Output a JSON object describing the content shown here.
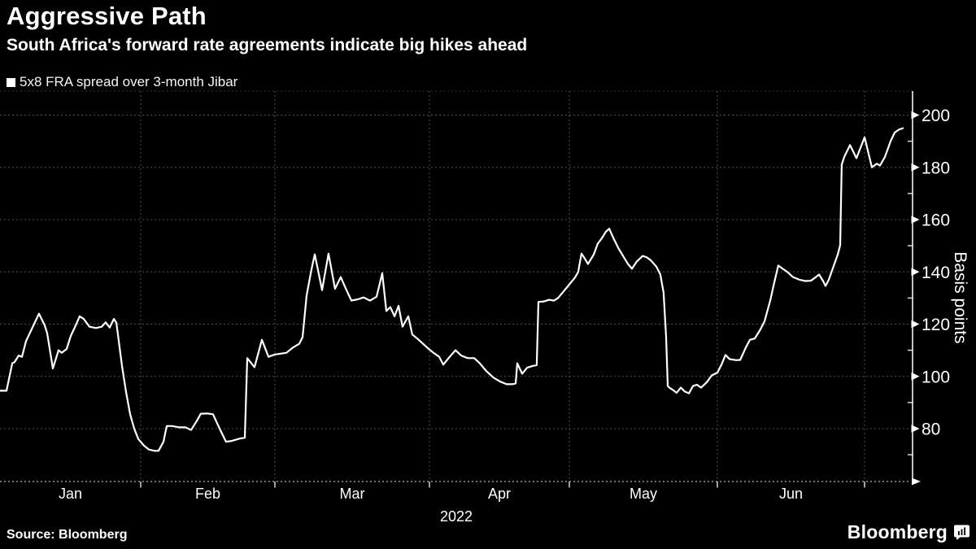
{
  "header": {
    "title": "Aggressive Path",
    "subtitle": "South Africa's forward rate agreements indicate big hikes ahead"
  },
  "legend": {
    "marker_color": "#ffffff",
    "label": "5x8 FRA spread over 3-month Jibar"
  },
  "footer": {
    "source": "Source: Bloomberg",
    "logo_text": "Bloomberg"
  },
  "chart_data": {
    "type": "line",
    "title": "Aggressive Path",
    "subtitle": "South Africa's forward rate agreements indicate big hikes ahead",
    "ylabel": "Basis points",
    "xlabel": "",
    "x_axis_year_label": "2022",
    "xticklabels": [
      "Jan",
      "Feb",
      "Mar",
      "Apr",
      "May",
      "Jun"
    ],
    "yticks": [
      80,
      100,
      120,
      140,
      160,
      180,
      200
    ],
    "minor_yticks": [
      70,
      90,
      110,
      130,
      150,
      170,
      190
    ],
    "ylim": [
      60,
      207
    ],
    "grid": true,
    "legend_position": "top-left",
    "background": "#000000",
    "grid_color": "#4f4f4f",
    "series": [
      {
        "name": "5x8 FRA spread over 3-month Jibar",
        "color": "#ffffff",
        "x_unit": "months since 1 Jan 2022 (fractional; 0=Jan, 5=Jun)",
        "y_unit": "basis points",
        "points": [
          [
            0,
            94.5
          ],
          [
            0.046,
            94.5
          ],
          [
            0.087,
            105
          ],
          [
            0.104,
            105.5
          ],
          [
            0.133,
            108
          ],
          [
            0.156,
            107.5
          ],
          [
            0.185,
            113.5
          ],
          [
            0.22,
            117.5
          ],
          [
            0.277,
            124
          ],
          [
            0.318,
            119.5
          ],
          [
            0.335,
            116.5
          ],
          [
            0.376,
            103
          ],
          [
            0.416,
            110
          ],
          [
            0.439,
            109
          ],
          [
            0.474,
            110.5
          ],
          [
            0.503,
            115.5
          ],
          [
            0.538,
            119.5
          ],
          [
            0.566,
            123
          ],
          [
            0.595,
            122
          ],
          [
            0.636,
            119
          ],
          [
            0.682,
            118.5
          ],
          [
            0.723,
            119
          ],
          [
            0.751,
            120.7
          ],
          [
            0.78,
            118.7
          ],
          [
            0.809,
            122
          ],
          [
            0.827,
            120.5
          ],
          [
            0.867,
            104
          ],
          [
            0.896,
            94
          ],
          [
            0.925,
            85.5
          ],
          [
            0.954,
            80
          ],
          [
            0.983,
            76
          ],
          [
            1.024,
            73.5
          ],
          [
            1.061,
            72
          ],
          [
            1.103,
            71.5
          ],
          [
            1.133,
            71.5
          ],
          [
            1.17,
            75
          ],
          [
            1.194,
            81
          ],
          [
            1.236,
            81
          ],
          [
            1.285,
            80.5
          ],
          [
            1.333,
            80.5
          ],
          [
            1.376,
            79.5
          ],
          [
            1.418,
            83
          ],
          [
            1.448,
            85.7
          ],
          [
            1.497,
            85.8
          ],
          [
            1.539,
            85.5
          ],
          [
            1.588,
            80
          ],
          [
            1.636,
            75
          ],
          [
            1.679,
            75.3
          ],
          [
            1.739,
            76.2
          ],
          [
            1.776,
            76.5
          ],
          [
            1.794,
            107
          ],
          [
            1.848,
            103.5
          ],
          [
            1.903,
            114
          ],
          [
            1.952,
            107.5
          ],
          [
            1.994,
            108.3
          ],
          [
            2.037,
            108.7
          ],
          [
            2.074,
            109
          ],
          [
            2.116,
            111
          ],
          [
            2.158,
            112.5
          ],
          [
            2.179,
            115
          ],
          [
            2.205,
            131
          ],
          [
            2.237,
            141
          ],
          [
            2.258,
            146.7
          ],
          [
            2.305,
            133
          ],
          [
            2.347,
            147
          ],
          [
            2.389,
            133.5
          ],
          [
            2.426,
            138
          ],
          [
            2.463,
            133
          ],
          [
            2.495,
            129
          ],
          [
            2.537,
            129.5
          ],
          [
            2.574,
            130.2
          ],
          [
            2.616,
            129
          ],
          [
            2.658,
            130.5
          ],
          [
            2.695,
            139.5
          ],
          [
            2.721,
            125
          ],
          [
            2.747,
            126.5
          ],
          [
            2.774,
            123
          ],
          [
            2.8,
            127
          ],
          [
            2.826,
            119
          ],
          [
            2.863,
            123
          ],
          [
            2.889,
            116
          ],
          [
            2.921,
            114.5
          ],
          [
            2.958,
            112.5
          ],
          [
            2.995,
            110.5
          ],
          [
            3.029,
            109
          ],
          [
            3.07,
            107.5
          ],
          [
            3.099,
            104.5
          ],
          [
            3.145,
            107.5
          ],
          [
            3.186,
            110
          ],
          [
            3.227,
            108
          ],
          [
            3.273,
            107
          ],
          [
            3.32,
            107
          ],
          [
            3.36,
            105
          ],
          [
            3.407,
            102
          ],
          [
            3.459,
            99.5
          ],
          [
            3.506,
            98
          ],
          [
            3.552,
            97
          ],
          [
            3.593,
            97
          ],
          [
            3.616,
            97.3
          ],
          [
            3.628,
            105
          ],
          [
            3.663,
            101
          ],
          [
            3.698,
            103.3
          ],
          [
            3.738,
            104
          ],
          [
            3.767,
            104.3
          ],
          [
            3.779,
            128.5
          ],
          [
            3.82,
            128.7
          ],
          [
            3.855,
            129.3
          ],
          [
            3.89,
            129
          ],
          [
            3.919,
            130
          ],
          [
            3.959,
            132.5
          ],
          [
            4,
            135.2
          ],
          [
            4.038,
            137.8
          ],
          [
            4.06,
            140
          ],
          [
            4.082,
            147
          ],
          [
            4.099,
            145.6
          ],
          [
            4.126,
            143
          ],
          [
            4.165,
            146.6
          ],
          [
            4.192,
            150.8
          ],
          [
            4.22,
            152.9
          ],
          [
            4.247,
            155.4
          ],
          [
            4.269,
            156.5
          ],
          [
            4.302,
            152.4
          ],
          [
            4.33,
            149.2
          ],
          [
            4.368,
            145.6
          ],
          [
            4.396,
            143
          ],
          [
            4.423,
            141.2
          ],
          [
            4.456,
            144
          ],
          [
            4.495,
            146.1
          ],
          [
            4.522,
            145.6
          ],
          [
            4.549,
            144.5
          ],
          [
            4.588,
            142
          ],
          [
            4.615,
            139
          ],
          [
            4.637,
            132
          ],
          [
            4.654,
            115
          ],
          [
            4.665,
            96.3
          ],
          [
            4.676,
            95.7
          ],
          [
            4.703,
            94.7
          ],
          [
            4.725,
            93.7
          ],
          [
            4.753,
            95.7
          ],
          [
            4.78,
            94.2
          ],
          [
            4.808,
            93.5
          ],
          [
            4.835,
            96.3
          ],
          [
            4.862,
            96.8
          ],
          [
            4.89,
            95.7
          ],
          [
            4.929,
            97.8
          ],
          [
            4.962,
            100.4
          ],
          [
            5,
            101.4
          ],
          [
            5.028,
            104.5
          ],
          [
            5.055,
            108.2
          ],
          [
            5.083,
            106.6
          ],
          [
            5.127,
            106.2
          ],
          [
            5.155,
            106.3
          ],
          [
            5.193,
            111
          ],
          [
            5.221,
            114
          ],
          [
            5.254,
            114.5
          ],
          [
            5.293,
            118
          ],
          [
            5.32,
            121
          ],
          [
            5.359,
            129
          ],
          [
            5.387,
            136
          ],
          [
            5.414,
            142.4
          ],
          [
            5.448,
            141
          ],
          [
            5.475,
            140
          ],
          [
            5.514,
            138
          ],
          [
            5.558,
            137
          ],
          [
            5.597,
            136.5
          ],
          [
            5.635,
            136.6
          ],
          [
            5.669,
            138
          ],
          [
            5.691,
            139
          ],
          [
            5.718,
            136.5
          ],
          [
            5.735,
            134.6
          ],
          [
            5.757,
            137
          ],
          [
            5.779,
            140.5
          ],
          [
            5.818,
            146.7
          ],
          [
            5.834,
            150.2
          ],
          [
            5.845,
            181
          ],
          [
            5.862,
            184
          ],
          [
            5.901,
            188.5
          ],
          [
            5.945,
            183.5
          ],
          [
            6,
            191.5
          ],
          [
            6.153,
            180
          ],
          [
            6.254,
            181.4
          ],
          [
            6.322,
            180.7
          ],
          [
            6.424,
            184
          ],
          [
            6.542,
            190
          ],
          [
            6.627,
            193.3
          ],
          [
            6.712,
            194.4
          ],
          [
            6.797,
            195
          ]
        ]
      }
    ]
  }
}
